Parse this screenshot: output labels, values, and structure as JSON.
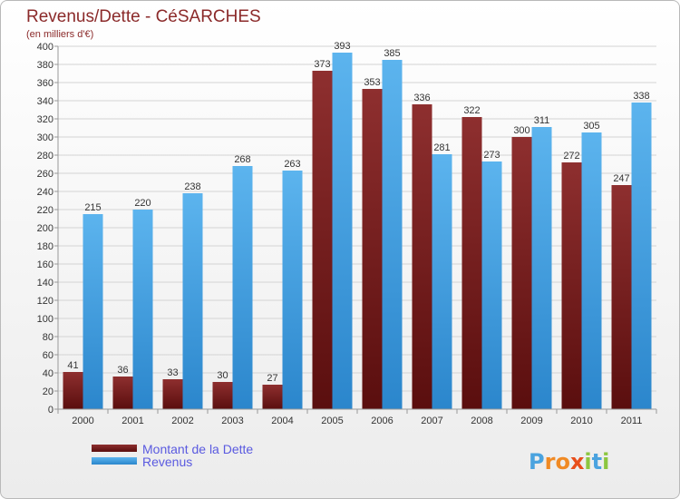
{
  "chart_data": {
    "type": "bar",
    "title": "Revenus/Dette - CéSARCHES",
    "subtitle": "(en milliers d'€)",
    "categories": [
      "2000",
      "2001",
      "2002",
      "2003",
      "2004",
      "2005",
      "2006",
      "2007",
      "2008",
      "2009",
      "2010",
      "2011"
    ],
    "series": [
      {
        "name": "Montant de la Dette",
        "values": [
          41,
          36,
          33,
          30,
          27,
          373,
          353,
          336,
          322,
          300,
          272,
          247
        ],
        "color": "#7a1c1c"
      },
      {
        "name": "Revenus",
        "values": [
          215,
          220,
          238,
          268,
          263,
          393,
          385,
          281,
          273,
          311,
          305,
          338
        ],
        "color": "#4ea8e6"
      }
    ],
    "ylim": [
      0,
      400
    ],
    "ytick_step": 20,
    "grid": true,
    "legend": "bottom-left"
  },
  "brand": {
    "name": "Proxiti",
    "letters": [
      "P",
      "r",
      "o",
      "x",
      "i",
      "t",
      "i"
    ],
    "colors": [
      "#4aa3df",
      "#f08a24",
      "#f08a24",
      "#e84e1b",
      "#8cc63f",
      "#4aa3df",
      "#8cc63f"
    ]
  }
}
